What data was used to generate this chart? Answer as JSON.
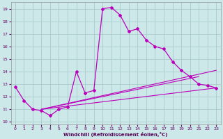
{
  "bg_color": "#cce8e8",
  "grid_color": "#aacccc",
  "line_color": "#bb00bb",
  "xlim": [
    -0.5,
    23.5
  ],
  "ylim": [
    9.8,
    19.5
  ],
  "yticks": [
    10,
    11,
    12,
    13,
    14,
    15,
    16,
    17,
    18,
    19
  ],
  "xticks": [
    0,
    1,
    2,
    3,
    4,
    5,
    6,
    7,
    8,
    9,
    10,
    11,
    12,
    13,
    14,
    15,
    16,
    17,
    18,
    19,
    20,
    21,
    22,
    23
  ],
  "xlabel": "Windchill (Refroidissement éolien,°C)",
  "main_x": [
    0,
    1,
    2,
    3,
    4,
    5,
    6,
    7,
    8,
    9,
    10,
    11,
    12,
    13,
    14,
    15,
    16,
    17,
    18,
    19,
    20,
    21,
    22,
    23
  ],
  "main_y": [
    12.8,
    11.7,
    11.0,
    10.9,
    10.5,
    11.0,
    11.2,
    14.0,
    12.3,
    12.5,
    19.0,
    19.1,
    18.5,
    17.2,
    17.4,
    16.5,
    16.0,
    15.8,
    14.8,
    14.1,
    13.6,
    13.0,
    12.9,
    12.7
  ],
  "fan_lines": [
    {
      "x": [
        3,
        23
      ],
      "y": [
        11.0,
        12.7
      ]
    },
    {
      "x": [
        3,
        21
      ],
      "y": [
        11.0,
        13.6
      ]
    },
    {
      "x": [
        3,
        23
      ],
      "y": [
        11.0,
        14.1
      ]
    }
  ]
}
